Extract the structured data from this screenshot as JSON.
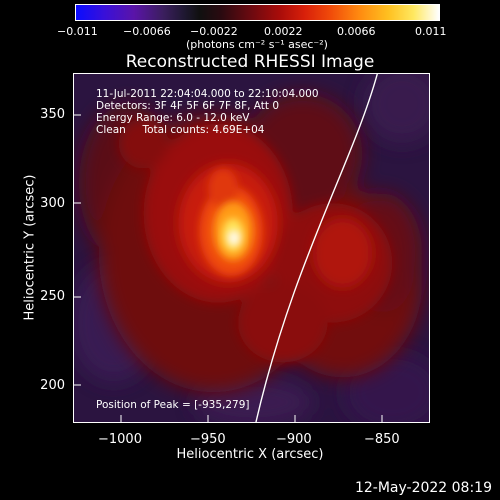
{
  "colorbar": {
    "ticks": [
      "−0.011",
      "−0.0066",
      "−0.0022",
      "0.0022",
      "0.0066",
      "0.011"
    ],
    "unit_label": "(photons cm⁻² s⁻¹ asec⁻²)"
  },
  "plot": {
    "title": "Reconstructed RHESSI Image",
    "info": {
      "time": "11-Jul-2011 22:04:04.000 to 22:10:04.000",
      "detectors": "Detectors: 3F 4F 5F 6F 7F 8F, Att 0",
      "energy": "Energy Range: 6.0 - 12.0 keV",
      "method": "Clean     Total counts: 4.69E+04"
    },
    "peak": "Position of Peak = [-935,279]",
    "x_ticks": [
      "−1000",
      "−950",
      "−900",
      "−850"
    ],
    "y_ticks": [
      "350",
      "300",
      "250",
      "200"
    ],
    "xlabel": "Heliocentric X (arcsec)",
    "ylabel": "Heliocentric Y (arcsec)"
  },
  "footer": {
    "date": "12-May-2022 08:19"
  },
  "colors": {
    "background": "#000000",
    "foreground": "#ffffff"
  }
}
